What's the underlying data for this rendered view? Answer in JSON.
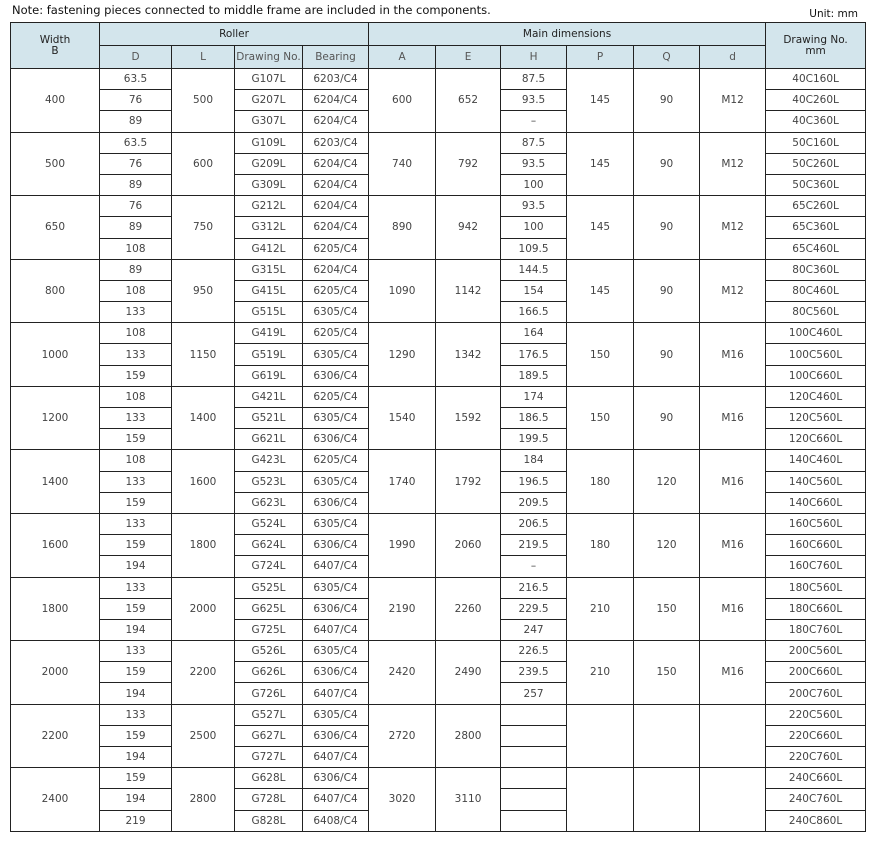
{
  "note": "Note: fastening pieces connected to middle frame are included in the components.",
  "unit": "Unit: mm",
  "header": {
    "width": "Width",
    "width_sub": "B",
    "roller": "Roller",
    "main": "Main dimensions",
    "drawing_no": "Drawing No.",
    "drawing_no_sub": "mm",
    "cols": [
      "D",
      "L",
      "Drawing No.",
      "Bearing",
      "A",
      "E",
      "H",
      "P",
      "Q",
      "d"
    ]
  },
  "colors": {
    "header_bg": "#d3e5ec",
    "border": "#222222"
  },
  "groups": [
    {
      "B": "400",
      "L": "500",
      "A": "600",
      "E": "652",
      "P": "145",
      "Q": "90",
      "d": "M12",
      "rows": [
        [
          "63.5",
          "G107L",
          "6203/C4",
          "87.5",
          "40C160L"
        ],
        [
          "76",
          "G207L",
          "6204/C4",
          "93.5",
          "40C260L"
        ],
        [
          "89",
          "G307L",
          "6204/C4",
          "–",
          "40C360L"
        ]
      ]
    },
    {
      "B": "500",
      "L": "600",
      "A": "740",
      "E": "792",
      "P": "145",
      "Q": "90",
      "d": "M12",
      "rows": [
        [
          "63.5",
          "G109L",
          "6203/C4",
          "87.5",
          "50C160L"
        ],
        [
          "76",
          "G209L",
          "6204/C4",
          "93.5",
          "50C260L"
        ],
        [
          "89",
          "G309L",
          "6204/C4",
          "100",
          "50C360L"
        ]
      ]
    },
    {
      "B": "650",
      "L": "750",
      "A": "890",
      "E": "942",
      "P": "145",
      "Q": "90",
      "d": "M12",
      "rows": [
        [
          "76",
          "G212L",
          "6204/C4",
          "93.5",
          "65C260L"
        ],
        [
          "89",
          "G312L",
          "6204/C4",
          "100",
          "65C360L"
        ],
        [
          "108",
          "G412L",
          "6205/C4",
          "109.5",
          "65C460L"
        ]
      ]
    },
    {
      "B": "800",
      "L": "950",
      "A": "1090",
      "E": "1142",
      "P": "145",
      "Q": "90",
      "d": "M12",
      "rows": [
        [
          "89",
          "G315L",
          "6204/C4",
          "144.5",
          "80C360L"
        ],
        [
          "108",
          "G415L",
          "6205/C4",
          "154",
          "80C460L"
        ],
        [
          "133",
          "G515L",
          "6305/C4",
          "166.5",
          "80C560L"
        ]
      ]
    },
    {
      "B": "1000",
      "L": "1150",
      "A": "1290",
      "E": "1342",
      "P": "150",
      "Q": "90",
      "d": "M16",
      "rows": [
        [
          "108",
          "G419L",
          "6205/C4",
          "164",
          "100C460L"
        ],
        [
          "133",
          "G519L",
          "6305/C4",
          "176.5",
          "100C560L"
        ],
        [
          "159",
          "G619L",
          "6306/C4",
          "189.5",
          "100C660L"
        ]
      ]
    },
    {
      "B": "1200",
      "L": "1400",
      "A": "1540",
      "E": "1592",
      "P": "150",
      "Q": "90",
      "d": "M16",
      "rows": [
        [
          "108",
          "G421L",
          "6205/C4",
          "174",
          "120C460L"
        ],
        [
          "133",
          "G521L",
          "6305/C4",
          "186.5",
          "120C560L"
        ],
        [
          "159",
          "G621L",
          "6306/C4",
          "199.5",
          "120C660L"
        ]
      ]
    },
    {
      "B": "1400",
      "L": "1600",
      "A": "1740",
      "E": "1792",
      "P": "180",
      "Q": "120",
      "d": "M16",
      "rows": [
        [
          "108",
          "G423L",
          "6205/C4",
          "184",
          "140C460L"
        ],
        [
          "133",
          "G523L",
          "6305/C4",
          "196.5",
          "140C560L"
        ],
        [
          "159",
          "G623L",
          "6306/C4",
          "209.5",
          "140C660L"
        ]
      ]
    },
    {
      "B": "1600",
      "L": "1800",
      "A": "1990",
      "E": "2060",
      "P": "180",
      "Q": "120",
      "d": "M16",
      "rows": [
        [
          "133",
          "G524L",
          "6305/C4",
          "206.5",
          "160C560L"
        ],
        [
          "159",
          "G624L",
          "6306/C4",
          "219.5",
          "160C660L"
        ],
        [
          "194",
          "G724L",
          "6407/C4",
          "–",
          "160C760L"
        ]
      ]
    },
    {
      "B": "1800",
      "L": "2000",
      "A": "2190",
      "E": "2260",
      "P": "210",
      "Q": "150",
      "d": "M16",
      "rows": [
        [
          "133",
          "G525L",
          "6305/C4",
          "216.5",
          "180C560L"
        ],
        [
          "159",
          "G625L",
          "6306/C4",
          "229.5",
          "180C660L"
        ],
        [
          "194",
          "G725L",
          "6407/C4",
          "247",
          "180C760L"
        ]
      ]
    },
    {
      "B": "2000",
      "L": "2200",
      "A": "2420",
      "E": "2490",
      "P": "210",
      "Q": "150",
      "d": "M16",
      "rows": [
        [
          "133",
          "G526L",
          "6305/C4",
          "226.5",
          "200C560L"
        ],
        [
          "159",
          "G626L",
          "6306/C4",
          "239.5",
          "200C660L"
        ],
        [
          "194",
          "G726L",
          "6407/C4",
          "257",
          "200C760L"
        ]
      ]
    },
    {
      "B": "2200",
      "L": "2500",
      "A": "2720",
      "E": "2800",
      "P": "",
      "Q": "",
      "d": "",
      "rows": [
        [
          "133",
          "G527L",
          "6305/C4",
          "",
          "220C560L"
        ],
        [
          "159",
          "G627L",
          "6306/C4",
          "",
          "220C660L"
        ],
        [
          "194",
          "G727L",
          "6407/C4",
          "",
          "220C760L"
        ]
      ]
    },
    {
      "B": "2400",
      "L": "2800",
      "A": "3020",
      "E": "3110",
      "P": "",
      "Q": "",
      "d": "",
      "rows": [
        [
          "159",
          "G628L",
          "6306/C4",
          "",
          "240C660L"
        ],
        [
          "194",
          "G728L",
          "6407/C4",
          "",
          "240C760L"
        ],
        [
          "219",
          "G828L",
          "6408/C4",
          "",
          "240C860L"
        ]
      ]
    }
  ]
}
